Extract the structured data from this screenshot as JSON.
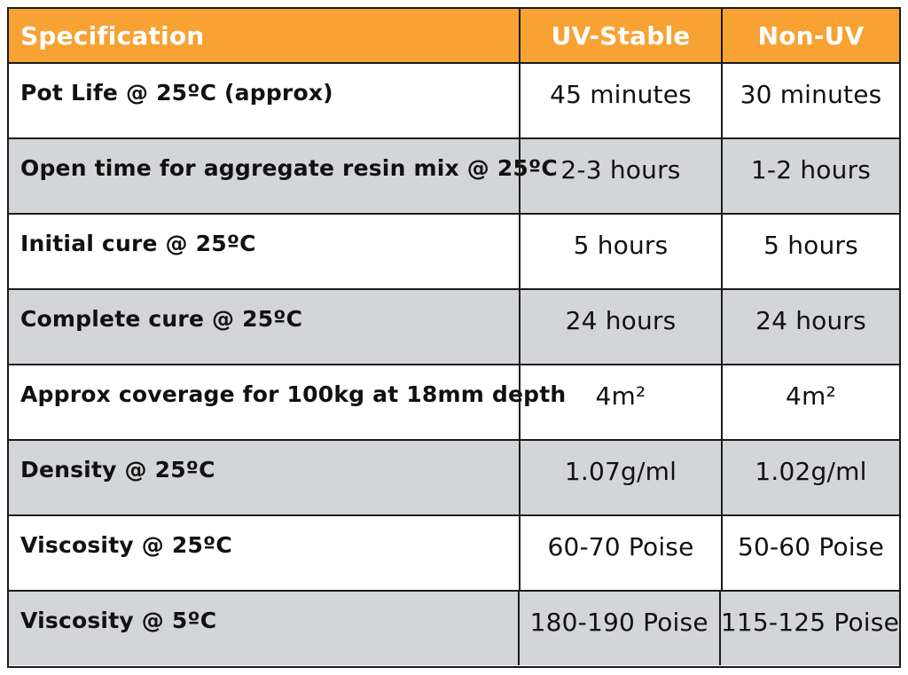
{
  "colors": {
    "header_background": "#f7a233",
    "header_text": "#ffffff",
    "shaded_row": "#d4d5d8",
    "plain_row": "#ffffff",
    "border": "#1a1a1a"
  },
  "table": {
    "headers": {
      "specification": "Specification",
      "uv_stable": "UV-Stable",
      "non_uv": "Non-UV"
    },
    "rows": [
      {
        "spec": "Pot Life @ 25ºC (approx)",
        "uv": "45 minutes",
        "nonuv": "30 minutes"
      },
      {
        "spec": "Open time for aggregate resin mix @ 25ºC",
        "uv": "2-3 hours",
        "nonuv": "1-2 hours"
      },
      {
        "spec": "Initial cure @ 25ºC",
        "uv": "5 hours",
        "nonuv": "5 hours"
      },
      {
        "spec": "Complete cure @ 25ºC",
        "uv": "24 hours",
        "nonuv": "24 hours"
      },
      {
        "spec": "Approx coverage for 100kg at 18mm depth",
        "uv": "4m²",
        "nonuv": "4m²"
      },
      {
        "spec": "Density @ 25ºC",
        "uv": "1.07g/ml",
        "nonuv": "1.02g/ml"
      },
      {
        "spec": "Viscosity @ 25ºC",
        "uv": "60-70 Poise",
        "nonuv": "50-60 Poise"
      },
      {
        "spec": "Viscosity @ 5ºC",
        "uv": "180-190 Poise",
        "nonuv": "115-125 Poise"
      }
    ]
  }
}
